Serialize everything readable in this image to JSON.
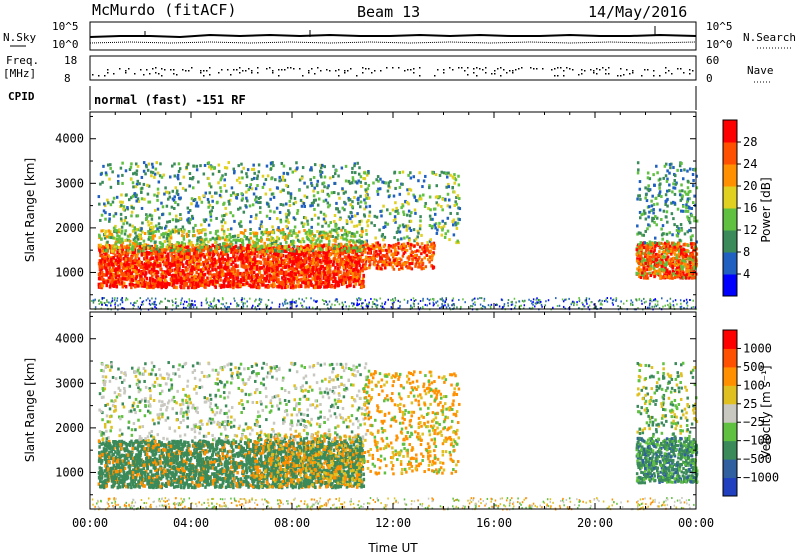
{
  "header": {
    "station": "McMurdo (fitACF)",
    "beam": "Beam 13",
    "date": "14/May/2016"
  },
  "status_panels": {
    "nsky_label": "N.Sky",
    "nsky_ticks": [
      "10^5",
      "10^0"
    ],
    "nsearch_label": "N.Search",
    "nsearch_ticks": [
      "10^5",
      "10^0"
    ],
    "freq_label": "Freq.",
    "freq_unit": "[MHz]",
    "freq_ticks": [
      "18",
      "8"
    ],
    "nave_label": "Nave",
    "nave_ticks": [
      "60",
      "0"
    ],
    "cpid_label": "CPID",
    "cpid_value": "normal (fast) -151 RF"
  },
  "chart_data": [
    {
      "type": "heatmap",
      "panel": "power",
      "ylabel": "Slant Range [km]",
      "xlabel": "",
      "xlim_hours": [
        0,
        24
      ],
      "ylim": [
        180,
        4600
      ],
      "yticks": [
        "4000",
        "3000",
        "2000",
        "1000"
      ],
      "yticks_values": [
        4000,
        3000,
        2000,
        1000
      ],
      "colorbar": {
        "label": "Power [dB]",
        "ticks": [
          "28",
          "24",
          "20",
          "16",
          "12",
          "8",
          "4"
        ],
        "colors": [
          "#0000ff",
          "#2060c0",
          "#3a8a5a",
          "#60c040",
          "#e0d020",
          "#ff9000",
          "#ff5000",
          "#ff0000"
        ],
        "range": [
          0,
          32
        ]
      }
    },
    {
      "type": "heatmap",
      "panel": "velocity",
      "ylabel": "Slant Range [km]",
      "xlabel": "Time UT",
      "xlim_hours": [
        0,
        24
      ],
      "ylim": [
        180,
        4600
      ],
      "xticks": [
        "00:00",
        "04:00",
        "08:00",
        "12:00",
        "16:00",
        "20:00",
        "00:00"
      ],
      "yticks": [
        "4000",
        "3000",
        "2000",
        "1000"
      ],
      "yticks_values": [
        4000,
        3000,
        2000,
        1000
      ],
      "colorbar": {
        "label": "Velocity [m s⁻¹]",
        "ticks": [
          "1000",
          "500",
          "100",
          "25",
          "−25",
          "−100",
          "−500",
          "−1000"
        ],
        "colors": [
          "#2040c0",
          "#3060a0",
          "#3a8a5a",
          "#60c040",
          "#c8c8c0",
          "#e0c020",
          "#ff9000",
          "#ff5000",
          "#ff0000"
        ]
      }
    }
  ],
  "colors": {
    "power_strong": "#ff2000",
    "power_mid": "#ff8000",
    "velocity_main": "#3a8a5a",
    "velocity_orange": "#ff9000"
  }
}
